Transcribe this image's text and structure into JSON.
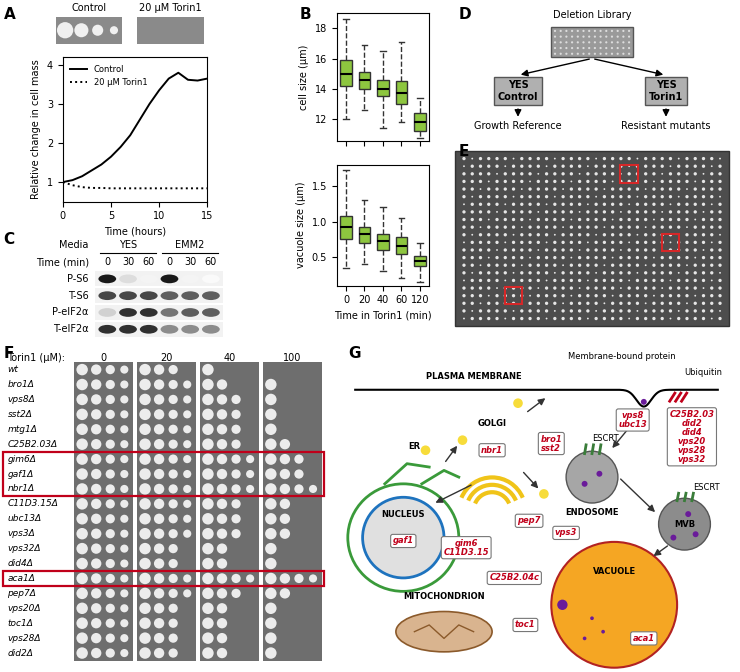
{
  "panel_labels": [
    "A",
    "B",
    "C",
    "D",
    "E",
    "F",
    "G"
  ],
  "chart_data": [
    {
      "type": "line",
      "x": [
        0,
        1,
        2,
        3,
        4,
        5,
        6,
        7,
        8,
        9,
        10,
        11,
        12,
        13,
        14,
        15
      ],
      "series": [
        {
          "name": "Control",
          "color": "#000000",
          "line_style": "solid",
          "values": [
            1.0,
            1.05,
            1.15,
            1.3,
            1.45,
            1.65,
            1.9,
            2.2,
            2.6,
            3.0,
            3.35,
            3.65,
            3.8,
            3.62,
            3.6,
            3.65
          ]
        },
        {
          "name": "20 µM Torin1",
          "color": "#000000",
          "line_style": "dotted",
          "values": [
            1.0,
            0.92,
            0.87,
            0.85,
            0.85,
            0.84,
            0.84,
            0.84,
            0.84,
            0.84,
            0.84,
            0.84,
            0.84,
            0.84,
            0.84,
            0.84
          ]
        }
      ],
      "xlabel": "Time (hours)",
      "ylabel": "Relative change in cell mass",
      "xlim": [
        0,
        15
      ],
      "ylim": [
        0.5,
        4.2
      ],
      "xticks": [
        0,
        5,
        10,
        15
      ],
      "yticks": [
        1,
        2,
        3,
        4
      ],
      "legend": "upper left"
    },
    {
      "type": "box",
      "color": "#8dc63f",
      "ylabel": "cell size (µm)",
      "boxes": [
        {
          "whislo": 12.0,
          "q1": 14.2,
          "med": 15.0,
          "q3": 15.9,
          "whishi": 18.6
        },
        {
          "whislo": 12.6,
          "q1": 14.0,
          "med": 14.6,
          "q3": 15.1,
          "whishi": 16.9
        },
        {
          "whislo": 11.4,
          "q1": 13.5,
          "med": 14.0,
          "q3": 14.6,
          "whishi": 16.5
        },
        {
          "whislo": 11.8,
          "q1": 13.0,
          "med": 13.7,
          "q3": 14.5,
          "whishi": 17.1
        },
        {
          "whislo": 10.7,
          "q1": 11.2,
          "med": 11.8,
          "q3": 12.4,
          "whishi": 13.4
        }
      ],
      "ylim": [
        10.5,
        19
      ],
      "yticks": [
        12,
        14,
        16,
        18
      ],
      "tick_labels": "y"
    },
    {
      "type": "box",
      "color": "#8dc63f",
      "ylabel": "vacuole size (µm)",
      "xlabel": "Time in Torin1 (min)",
      "categories": [
        "0",
        "20",
        "40",
        "60",
        "120"
      ],
      "boxes": [
        {
          "whislo": 0.35,
          "q1": 0.75,
          "med": 0.92,
          "q3": 1.08,
          "whishi": 1.72
        },
        {
          "whislo": 0.4,
          "q1": 0.7,
          "med": 0.82,
          "q3": 0.92,
          "whishi": 1.3
        },
        {
          "whislo": 0.3,
          "q1": 0.6,
          "med": 0.72,
          "q3": 0.82,
          "whishi": 1.2
        },
        {
          "whislo": 0.2,
          "q1": 0.55,
          "med": 0.65,
          "q3": 0.78,
          "whishi": 1.05
        },
        {
          "whislo": 0.15,
          "q1": 0.38,
          "med": 0.45,
          "q3": 0.52,
          "whishi": 0.7
        }
      ],
      "ylim": [
        0.1,
        1.8
      ],
      "yticks": [
        {
          "value": 0.5,
          "label": "0.5"
        },
        {
          "value": 1.0,
          "label": "1.0"
        },
        {
          "value": 1.5,
          "label": "1.5"
        }
      ]
    }
  ],
  "panel_a_images": {
    "labels": [
      "Control",
      "20 µM Torin1"
    ]
  },
  "western_blot": {
    "media_label": "Media",
    "media": [
      "YES",
      "EMM2"
    ],
    "time_label": "Time (min)",
    "times": [
      "0",
      "30",
      "60",
      "0",
      "30",
      "60"
    ],
    "rows": [
      {
        "name": "P-S6",
        "signal": [
          1.0,
          0.15,
          0.05,
          1.0,
          0.05,
          0.02
        ]
      },
      {
        "name": "T-S6",
        "signal": [
          0.8,
          0.8,
          0.8,
          0.7,
          0.7,
          0.7
        ]
      },
      {
        "name": "P-eIF2α",
        "signal": [
          0.2,
          0.9,
          0.9,
          0.6,
          0.7,
          0.7
        ]
      },
      {
        "name": "T-eIF2α",
        "signal": [
          0.9,
          0.9,
          0.9,
          0.5,
          0.5,
          0.5
        ]
      }
    ]
  },
  "screen_scheme": {
    "source": "Deletion Library",
    "conditions": [
      {
        "medium": "YES\nControl",
        "outcome": "Growth Reference"
      },
      {
        "medium": "YES\nTorin1",
        "outcome": "Resistant mutants"
      }
    ]
  },
  "spot_assay": {
    "dose_label": "Torin1 (µM):",
    "doses": [
      0,
      20,
      40,
      100
    ],
    "strains": [
      "wt",
      "bro1Δ",
      "vps8Δ",
      "sst2Δ",
      "mtg1Δ",
      "C25B2.03Δ",
      "gim6Δ",
      "gaf1Δ",
      "nbr1Δ",
      "C11D3.15Δ",
      "ubc13Δ",
      "vps3Δ",
      "vps32Δ",
      "did4Δ",
      "aca1Δ",
      "pep7Δ",
      "vps20Δ",
      "toc1Δ",
      "vps28Δ",
      "did2Δ"
    ],
    "growth": [
      [
        4,
        3,
        1,
        0
      ],
      [
        4,
        4,
        2,
        1
      ],
      [
        4,
        4,
        3,
        1
      ],
      [
        4,
        4,
        3,
        1
      ],
      [
        4,
        4,
        3,
        1
      ],
      [
        4,
        4,
        3,
        2
      ],
      [
        4,
        4,
        4,
        3
      ],
      [
        4,
        4,
        4,
        3
      ],
      [
        4,
        4,
        4,
        4
      ],
      [
        4,
        4,
        3,
        2
      ],
      [
        4,
        4,
        3,
        2
      ],
      [
        4,
        4,
        3,
        2
      ],
      [
        4,
        3,
        2,
        1
      ],
      [
        4,
        3,
        2,
        1
      ],
      [
        4,
        4,
        4,
        4
      ],
      [
        4,
        4,
        3,
        2
      ],
      [
        4,
        3,
        2,
        1
      ],
      [
        4,
        3,
        2,
        1
      ],
      [
        4,
        3,
        2,
        1
      ],
      [
        4,
        3,
        2,
        1
      ]
    ],
    "highlighted": [
      "gim6Δ",
      "gaf1Δ",
      "nbr1Δ",
      "aca1Δ"
    ]
  },
  "diagram": {
    "labels": [
      "PLASMA MEMBRANE",
      "Membrane-bound protein",
      "Ubiquitin",
      "ER",
      "GOLGI",
      "NUCLEUS",
      "ESCRT",
      "ENDOSOME",
      "ESCRT",
      "MVB",
      "VACUOLE",
      "MITOCHONDRION"
    ],
    "gene_boxes": [
      [
        "vps8",
        "ubc13"
      ],
      [
        "bro1",
        "sst2"
      ],
      [
        "C25B2.03",
        "did2",
        "did4",
        "vps20",
        "vps28",
        "vps32"
      ],
      [
        "nbr1"
      ],
      [
        "gaf1"
      ],
      [
        "pep7"
      ],
      [
        "vps3"
      ],
      [
        "gim6",
        "C11D3.15"
      ],
      [
        "C25B2.04c"
      ],
      [
        "toc1"
      ],
      [
        "aca1"
      ]
    ]
  }
}
